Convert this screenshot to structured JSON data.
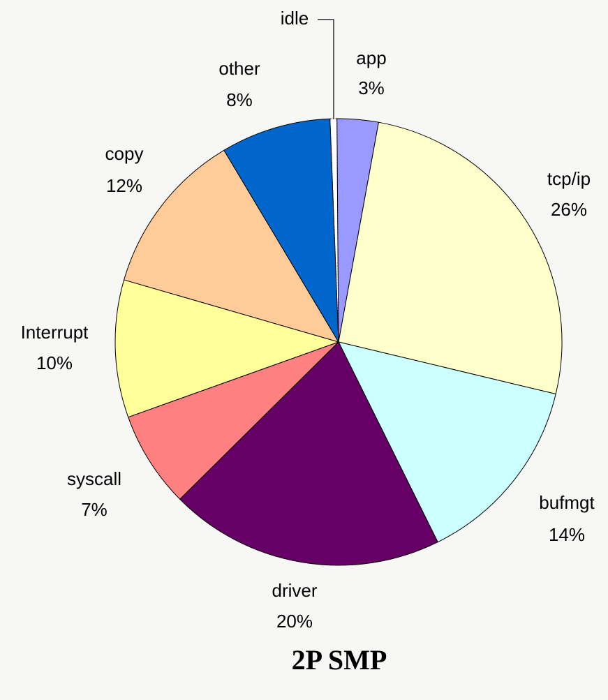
{
  "chart_data": {
    "type": "pie",
    "title": "2P SMP",
    "categories": [
      "idle",
      "app",
      "tcp/ip",
      "bufmgt",
      "driver",
      "syscall",
      "Interrupt",
      "copy",
      "other"
    ],
    "values": [
      0.5,
      3,
      26,
      14,
      20,
      7,
      10,
      12,
      8
    ],
    "value_labels": [
      null,
      "3%",
      "26%",
      "14%",
      "20%",
      "7%",
      "10%",
      "12%",
      "8%"
    ],
    "colors": [
      "#ffffff",
      "#9999ff",
      "#ffffcc",
      "#ccffff",
      "#660066",
      "#ff8080",
      "#ffff99",
      "#ffcc99",
      "#0066cc"
    ]
  }
}
